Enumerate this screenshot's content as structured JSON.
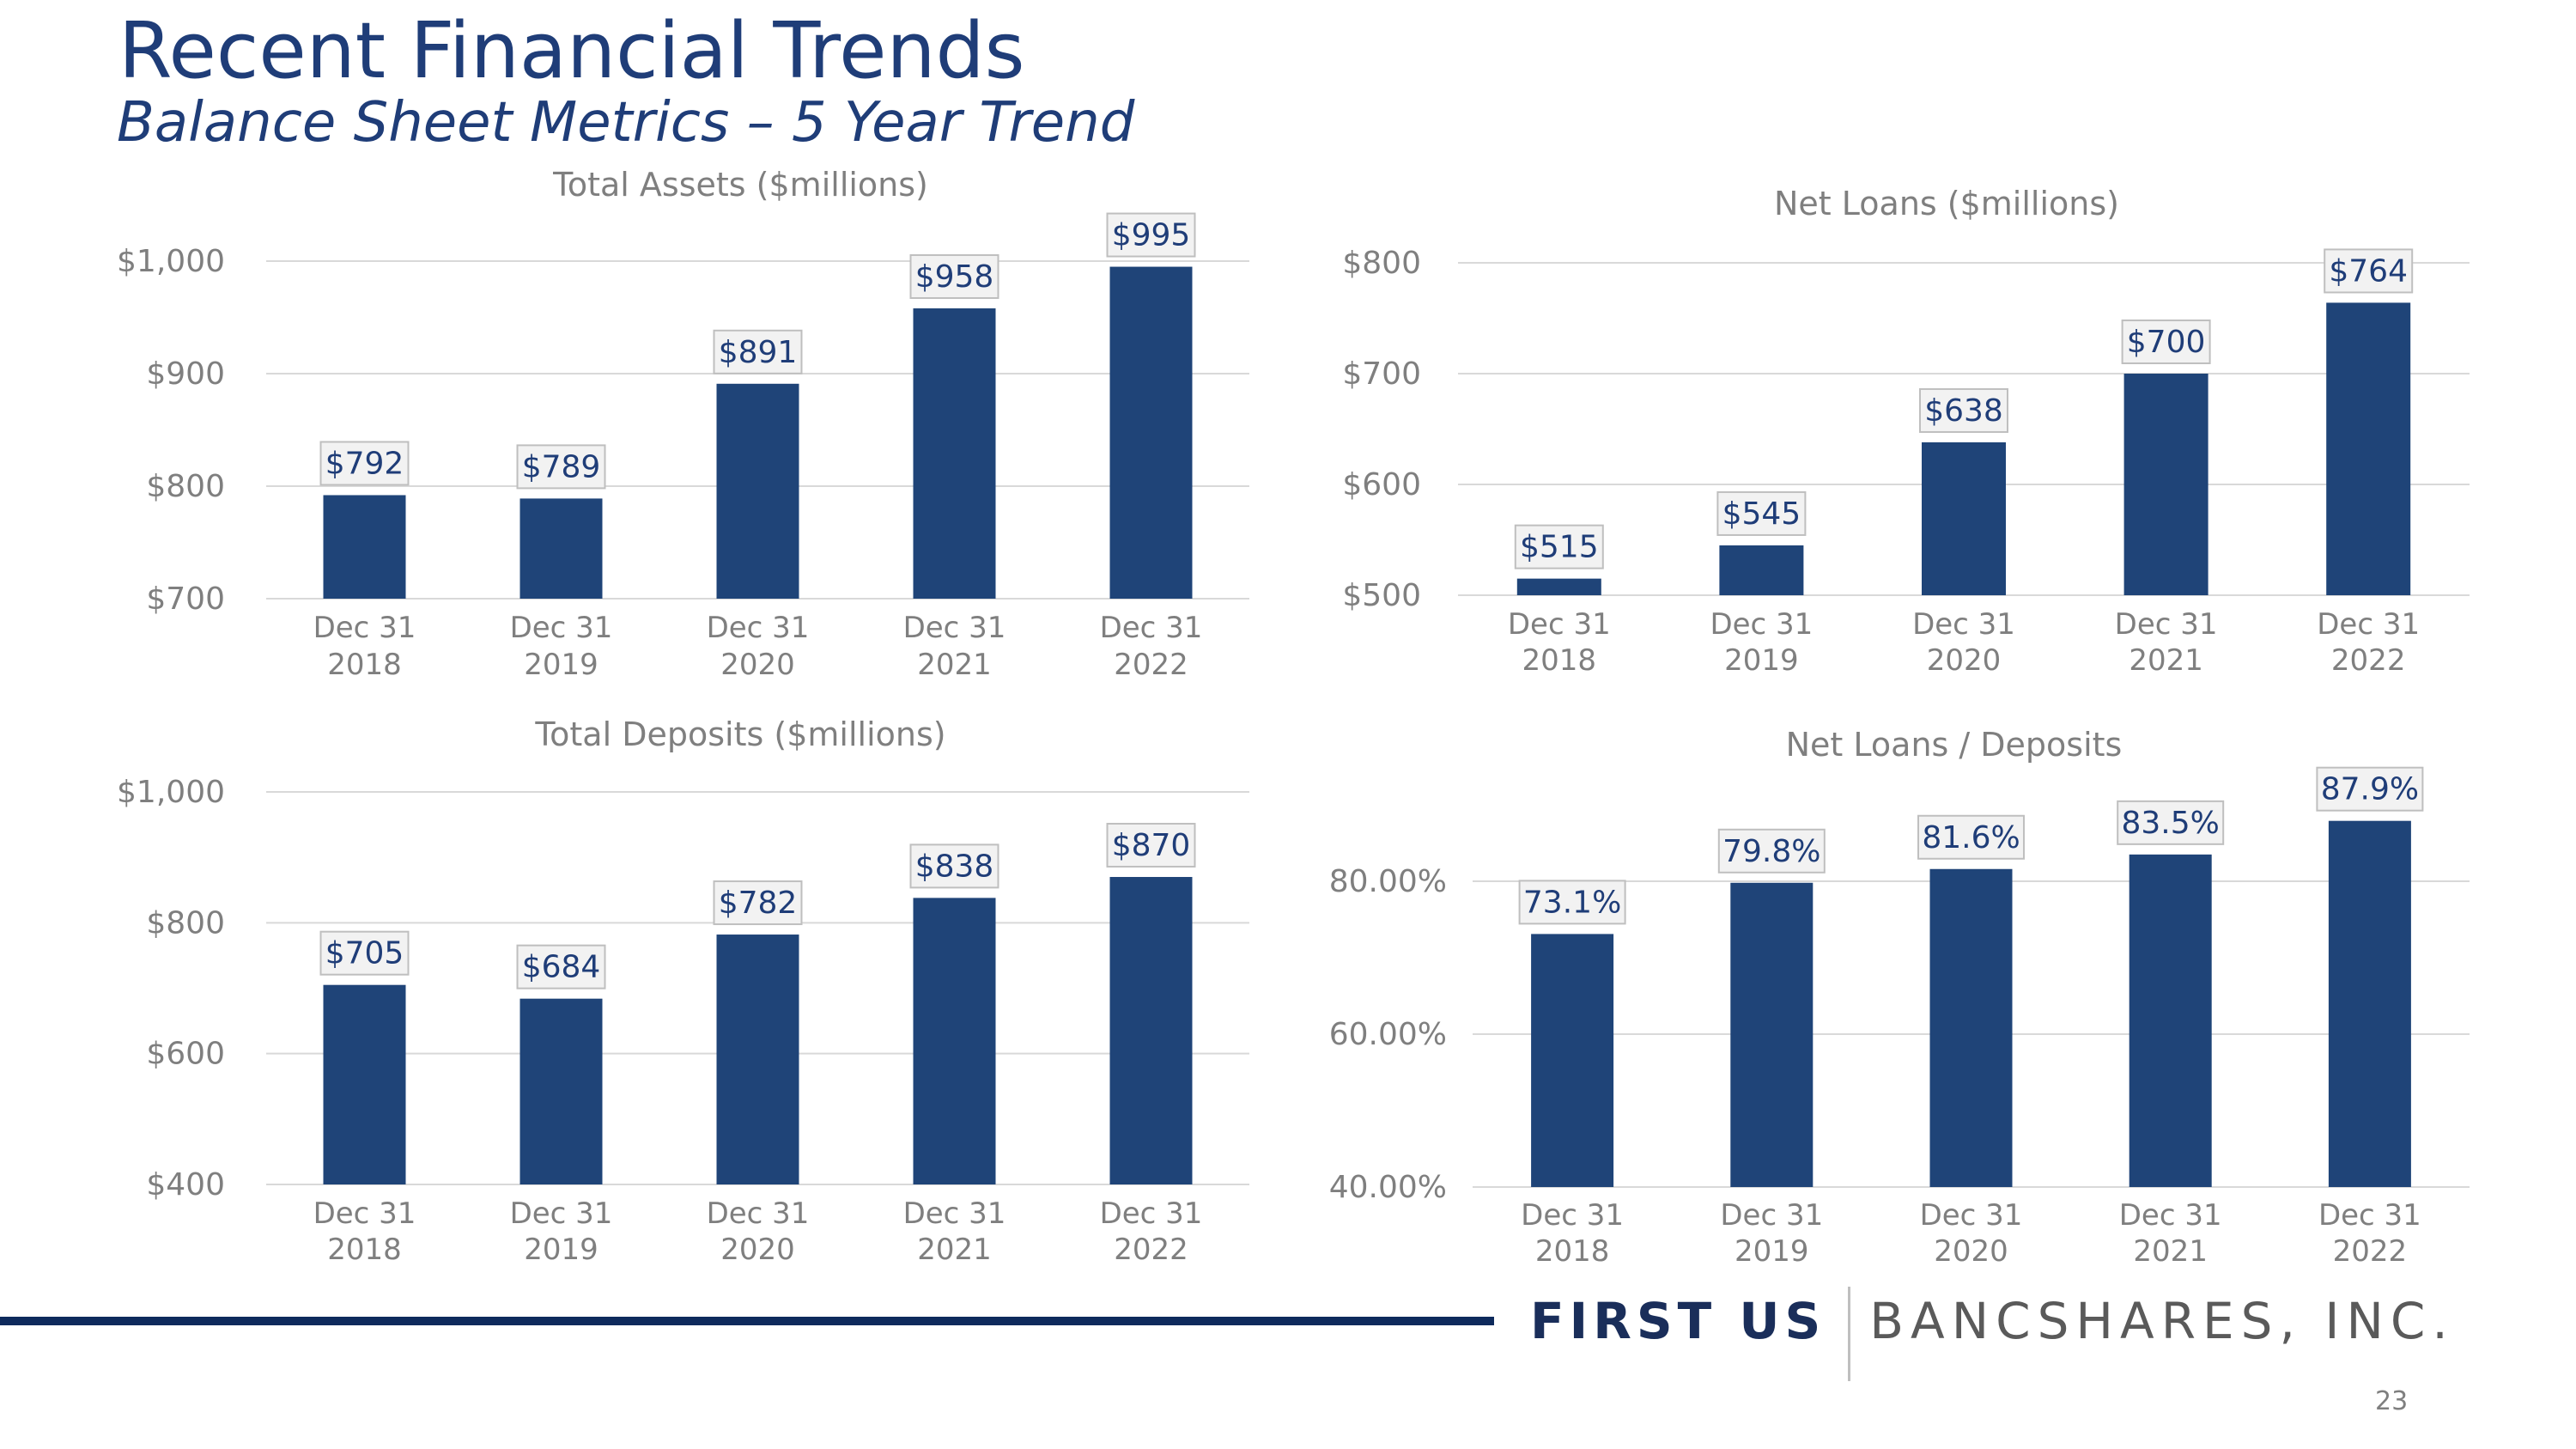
{
  "header": {
    "title": "Recent Financial Trends",
    "subtitle": "Balance Sheet Metrics – 5 Year Trend"
  },
  "footer": {
    "logo_primary": "FIRST US",
    "logo_secondary": "BANCSHARES, INC.",
    "page_number": "23"
  },
  "colors": {
    "bar": "#1f4478",
    "title": "#1f3d78",
    "label_box_fill": "#f2f2f2",
    "label_box_border": "#bfbfbf",
    "gridline": "#d9d9d9",
    "axis_text": "#7f7f7f"
  },
  "chart_data": [
    {
      "type": "bar",
      "title": "Total Assets ($millions)",
      "categories": [
        [
          "Dec 31",
          "2018"
        ],
        [
          "Dec 31",
          "2019"
        ],
        [
          "Dec 31",
          "2020"
        ],
        [
          "Dec 31",
          "2021"
        ],
        [
          "Dec 31",
          "2022"
        ]
      ],
      "values": [
        792,
        789,
        891,
        958,
        995
      ],
      "data_labels": [
        "$792",
        "$789",
        "$891",
        "$958",
        "$995"
      ],
      "ylim": [
        700,
        1000
      ],
      "yticks": [
        700,
        800,
        900,
        1000
      ],
      "ytick_labels": [
        "$700",
        "$800",
        "$900",
        "$1,000"
      ],
      "grid": true,
      "legend": "none"
    },
    {
      "type": "bar",
      "title": "Net Loans ($millions)",
      "categories": [
        [
          "Dec 31",
          "2018"
        ],
        [
          "Dec 31",
          "2019"
        ],
        [
          "Dec 31",
          "2020"
        ],
        [
          "Dec 31",
          "2021"
        ],
        [
          "Dec 31",
          "2022"
        ]
      ],
      "values": [
        515,
        545,
        638,
        700,
        764
      ],
      "data_labels": [
        "$515",
        "$545",
        "$638",
        "$700",
        "$764"
      ],
      "ylim": [
        500,
        800
      ],
      "yticks": [
        500,
        600,
        700,
        800
      ],
      "ytick_labels": [
        "$500",
        "$600",
        "$700",
        "$800"
      ],
      "grid": true,
      "legend": "none"
    },
    {
      "type": "bar",
      "title": "Total Deposits ($millions)",
      "categories": [
        [
          "Dec 31",
          "2018"
        ],
        [
          "Dec 31",
          "2019"
        ],
        [
          "Dec 31",
          "2020"
        ],
        [
          "Dec 31",
          "2021"
        ],
        [
          "Dec 31",
          "2022"
        ]
      ],
      "values": [
        705,
        684,
        782,
        838,
        870
      ],
      "data_labels": [
        "$705",
        "$684",
        "$782",
        "$838",
        "$870"
      ],
      "ylim": [
        400,
        1000
      ],
      "yticks": [
        400,
        600,
        800,
        1000
      ],
      "ytick_labels": [
        "$400",
        "$600",
        "$800",
        "$1,000"
      ],
      "grid": true,
      "legend": "none"
    },
    {
      "type": "bar",
      "title": "Net Loans / Deposits",
      "categories": [
        [
          "Dec 31",
          "2018"
        ],
        [
          "Dec 31",
          "2019"
        ],
        [
          "Dec 31",
          "2020"
        ],
        [
          "Dec 31",
          "2021"
        ],
        [
          "Dec 31",
          "2022"
        ]
      ],
      "values": [
        73.1,
        79.8,
        81.6,
        83.5,
        87.9
      ],
      "data_labels": [
        "73.1%",
        "79.8%",
        "81.6%",
        "83.5%",
        "87.9%"
      ],
      "ylim": [
        40,
        80
      ],
      "yticks": [
        40,
        60,
        80
      ],
      "ytick_labels": [
        "40.00%",
        "60.00%",
        "80.00%"
      ],
      "grid": true,
      "legend": "none"
    }
  ]
}
